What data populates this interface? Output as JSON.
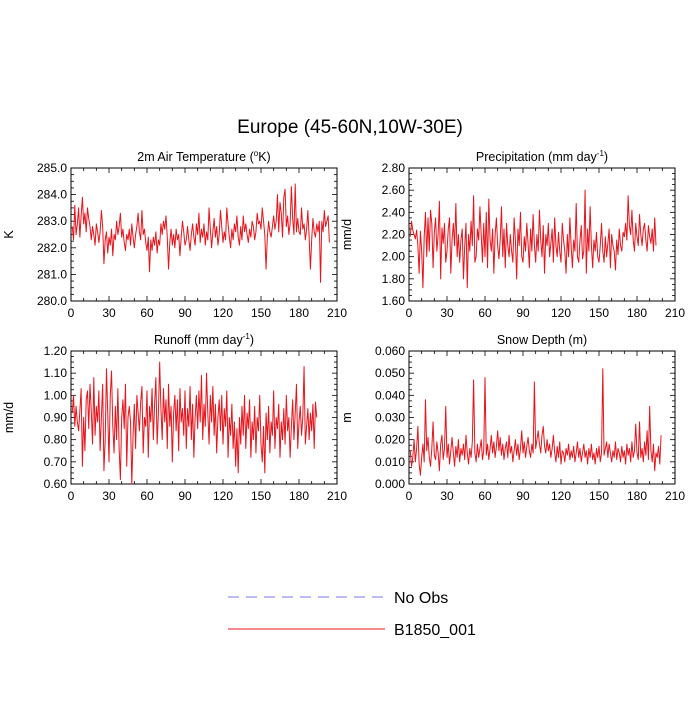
{
  "figure": {
    "title": "Europe (45-60N,10W-30E)"
  },
  "legend": {
    "entries": [
      {
        "label": "No Obs",
        "color": "#7777ee",
        "style": "dashed"
      },
      {
        "label": "B1850_001",
        "color": "#e8141c",
        "style": "solid"
      }
    ]
  },
  "chart_data": [
    {
      "type": "line",
      "id": "temp",
      "title_prefix": "2m Air Temperature (",
      "title_sup": "o",
      "title_suffix": "K)",
      "ylabel": "K",
      "xlim": [
        0,
        210
      ],
      "ylim": [
        280.0,
        285.0
      ],
      "xticks": [
        "0",
        "30",
        "60",
        "90",
        "120",
        "150",
        "180",
        "210"
      ],
      "yticks": [
        "280.0",
        "281.0",
        "282.0",
        "283.0",
        "284.0",
        "285.0"
      ],
      "series": [
        {
          "name": "B1850_001",
          "color": "#e8141c",
          "x_start": 1,
          "x_step": 1,
          "values": [
            282.8,
            282.3,
            283.6,
            282.5,
            282.9,
            283.5,
            282.4,
            283.2,
            283.9,
            282.9,
            283.3,
            282.6,
            283.5,
            283.1,
            282.8,
            282.3,
            282.8,
            282.5,
            282.1,
            282.9,
            282.6,
            282.2,
            282.6,
            283.4,
            282.8,
            281.4,
            282.3,
            282.6,
            281.8,
            282.4,
            282.1,
            282.7,
            281.7,
            282.5,
            282.3,
            283.0,
            282.5,
            282.8,
            283.3,
            282.4,
            282.7,
            282.2,
            281.9,
            282.5,
            282.3,
            282.7,
            282.1,
            282.9,
            282.4,
            282.0,
            282.5,
            282.8,
            283.3,
            282.6,
            282.3,
            283.4,
            282.5,
            282.7,
            282.2,
            281.9,
            282.4,
            281.1,
            282.3,
            281.9,
            282.4,
            282.1,
            282.6,
            281.8,
            282.3,
            282.1,
            282.9,
            282.5,
            283.0,
            282.7,
            283.2,
            282.4,
            281.2,
            282.2,
            282.7,
            282.1,
            282.5,
            282.0,
            282.7,
            282.3,
            282.5,
            281.7,
            282.4,
            283.0,
            282.6,
            282.1,
            282.3,
            282.8,
            282.3,
            281.9,
            282.5,
            282.9,
            282.4,
            282.1,
            282.9,
            282.5,
            283.3,
            282.2,
            282.7,
            282.4,
            282.9,
            282.1,
            282.6,
            282.3,
            283.5,
            282.7,
            282.0,
            282.6,
            283.1,
            282.4,
            282.8,
            282.1,
            282.5,
            283.4,
            282.8,
            282.2,
            282.6,
            282.3,
            283.5,
            282.9,
            282.4,
            282.0,
            282.7,
            282.3,
            282.9,
            282.6,
            283.2,
            282.4,
            282.1,
            282.8,
            282.3,
            283.2,
            282.6,
            282.9,
            282.5,
            282.2,
            282.7,
            282.4,
            283.0,
            282.8,
            282.3,
            282.6,
            283.3,
            282.9,
            283.0,
            282.7,
            283.5,
            283.0,
            282.5,
            281.2,
            282.4,
            283.0,
            282.6,
            282.4,
            282.8,
            283.2,
            282.7,
            283.0,
            284.0,
            282.6,
            283.7,
            283.3,
            282.4,
            283.9,
            284.2,
            282.8,
            283.2,
            282.5,
            282.9,
            284.3,
            283.1,
            282.5,
            284.4,
            282.6,
            283.1,
            282.6,
            282.5,
            283.5,
            282.7,
            282.9,
            282.3,
            282.7,
            283.4,
            282.4,
            281.2,
            282.3,
            283.1,
            282.6,
            282.4,
            282.9,
            282.6,
            283.0,
            280.7,
            283.0,
            282.6,
            283.4,
            282.8,
            283.0,
            283.2,
            282.2
          ]
        }
      ]
    },
    {
      "type": "line",
      "id": "precip",
      "title_prefix": "Precipitation (mm day",
      "title_sup": "-1",
      "title_suffix": ")",
      "ylabel": "mm/d",
      "xlim": [
        0,
        210
      ],
      "ylim": [
        1.6,
        2.8
      ],
      "xticks": [
        "0",
        "30",
        "60",
        "90",
        "120",
        "150",
        "180",
        "210"
      ],
      "yticks": [
        "1.60",
        "1.80",
        "2.00",
        "2.20",
        "2.40",
        "2.60",
        "2.80"
      ],
      "series": [
        {
          "name": "B1850_001",
          "color": "#e8141c",
          "x_start": 1,
          "x_step": 1,
          "values": [
            2.18,
            2.32,
            2.24,
            2.2,
            2.16,
            2.24,
            2.1,
            1.85,
            2.23,
            2.05,
            1.72,
            2.18,
            2.4,
            2.0,
            2.35,
            2.05,
            2.42,
            2.3,
            1.9,
            2.22,
            2.35,
            2.05,
            2.2,
            2.5,
            1.8,
            2.26,
            2.12,
            2.3,
            1.95,
            2.05,
            2.25,
            2.35,
            1.85,
            2.15,
            2.3,
            2.1,
            2.48,
            2.0,
            2.2,
            1.95,
            2.15,
            2.25,
            1.8,
            2.1,
            2.3,
            1.72,
            2.2,
            2.05,
            2.32,
            2.1,
            2.55,
            1.95,
            2.0,
            2.25,
            2.15,
            2.45,
            2.2,
            1.95,
            2.3,
            2.0,
            2.4,
            1.9,
            2.52,
            2.15,
            2.05,
            2.25,
            1.85,
            2.2,
            2.35,
            2.1,
            1.98,
            2.15,
            2.45,
            2.0,
            2.25,
            1.9,
            2.3,
            2.1,
            2.0,
            2.2,
            2.05,
            1.95,
            2.35,
            2.15,
            1.8,
            2.25,
            2.1,
            2.4,
            2.0,
            1.95,
            2.18,
            2.05,
            2.3,
            2.12,
            1.9,
            2.25,
            2.05,
            2.38,
            2.1,
            1.95,
            2.2,
            2.05,
            2.42,
            2.15,
            2.0,
            2.28,
            1.85,
            2.2,
            2.1,
            2.3,
            2.0,
            2.12,
            2.25,
            1.95,
            2.35,
            2.1,
            2.0,
            2.22,
            2.05,
            1.95,
            2.3,
            2.15,
            2.05,
            1.85,
            2.2,
            2.0,
            2.35,
            2.1,
            1.9,
            2.15,
            2.05,
            2.48,
            2.0,
            1.95,
            2.15,
            2.28,
            1.98,
            2.05,
            2.6,
            1.85,
            2.25,
            2.05,
            2.45,
            2.1,
            1.9,
            2.15,
            2.05,
            2.22,
            2.0,
            1.95,
            2.1,
            2.3,
            2.05,
            1.95,
            2.18,
            2.0,
            2.12,
            2.25,
            1.9,
            2.2,
            2.1,
            2.05,
            1.88,
            2.15,
            2.02,
            2.25,
            2.1,
            2.05,
            2.22,
            2.18,
            2.3,
            2.15,
            2.55,
            2.28,
            2.2,
            2.42,
            2.15,
            2.05,
            2.3,
            2.18,
            2.1,
            2.38,
            2.2,
            2.1,
            2.25,
            2.3,
            2.15,
            2.05,
            2.28,
            2.18,
            2.12,
            2.25,
            2.05,
            2.35,
            2.1
          ]
        }
      ]
    },
    {
      "type": "line",
      "id": "runoff",
      "title_prefix": "Runoff (mm day",
      "title_sup": "-1",
      "title_suffix": ")",
      "ylabel": "mm/d",
      "xlim": [
        0,
        210
      ],
      "ylim": [
        0.6,
        1.2
      ],
      "xticks": [
        "0",
        "30",
        "60",
        "90",
        "120",
        "150",
        "180",
        "210"
      ],
      "yticks": [
        "0.60",
        "0.70",
        "0.80",
        "0.90",
        "1.00",
        "1.10",
        "1.20"
      ],
      "series": [
        {
          "name": "B1850_001",
          "color": "#e8141c",
          "x_start": 1,
          "x_step": 1,
          "values": [
            0.92,
            1.0,
            0.86,
            0.95,
            0.88,
            0.84,
            0.93,
            1.03,
            0.68,
            0.9,
            0.75,
            0.98,
            1.02,
            0.85,
            1.05,
            0.93,
            0.78,
            1.08,
            0.82,
            0.95,
            0.88,
            1.02,
            0.75,
            0.9,
            1.05,
            0.66,
            0.8,
            1.12,
            0.92,
            0.7,
            1.0,
            1.11,
            0.86,
            0.74,
            0.95,
            0.8,
            1.03,
            0.76,
            0.62,
            0.9,
            0.98,
            0.85,
            1.05,
            0.68,
            0.9,
            0.95,
            0.88,
            0.6,
            0.82,
            0.96,
            0.76,
            1.0,
            0.92,
            0.84,
            0.97,
            1.04,
            0.74,
            0.9,
            0.86,
            1.02,
            0.72,
            0.95,
            0.88,
            1.03,
            0.8,
            0.96,
            1.08,
            0.78,
            0.92,
            1.15,
            0.94,
            0.8,
            1.03,
            0.88,
            0.98,
            0.76,
            1.05,
            0.86,
            0.95,
            0.7,
            0.92,
            1.0,
            0.84,
            0.98,
            0.75,
            1.03,
            0.88,
            0.94,
            0.82,
            1.02,
            0.76,
            0.94,
            0.86,
            1.04,
            0.8,
            0.96,
            0.72,
            0.9,
            1.0,
            0.85,
            1.02,
            0.88,
            1.09,
            0.8,
            0.96,
            0.86,
            1.1,
            0.92,
            0.78,
            1.0,
            0.88,
            1.04,
            0.82,
            0.96,
            0.74,
            0.9,
            0.98,
            0.84,
            1.0,
            0.78,
            0.94,
            0.86,
            1.02,
            0.72,
            0.9,
            0.82,
            0.96,
            0.76,
            0.88,
            0.68,
            0.85,
            0.65,
            0.9,
            0.78,
            0.95,
            0.82,
            1.0,
            0.76,
            0.92,
            0.85,
            0.98,
            0.72,
            0.88,
            0.8,
            0.95,
            0.74,
            0.9,
            0.84,
            1.0,
            0.78,
            0.7,
            0.86,
            0.65,
            0.92,
            0.8,
            0.95,
            0.74,
            0.88,
            0.82,
            1.02,
            0.76,
            0.9,
            0.85,
            0.96,
            0.72,
            0.88,
            0.8,
            0.94,
            0.78,
            1.0,
            0.84,
            0.9,
            0.72,
            0.86,
            0.98,
            0.8,
            0.92,
            1.05,
            0.76,
            0.88,
            0.95,
            0.82,
            0.9,
            1.13,
            0.78,
            0.86,
            0.94,
            0.8,
            0.92,
            0.84,
            0.96,
            0.76,
            0.97,
            0.9
          ]
        }
      ]
    },
    {
      "type": "line",
      "id": "snow",
      "title_prefix": "Snow Depth (m)",
      "title_sup": "",
      "title_suffix": "",
      "ylabel": "m",
      "xlim": [
        0,
        210
      ],
      "ylim": [
        0.0,
        0.06
      ],
      "xticks": [
        "0",
        "30",
        "60",
        "90",
        "120",
        "150",
        "180",
        "210"
      ],
      "yticks": [
        "0.000",
        "0.010",
        "0.020",
        "0.030",
        "0.040",
        "0.050",
        "0.060"
      ],
      "series": [
        {
          "name": "B1850_001",
          "color": "#e8141c",
          "x_start": 1,
          "x_step": 1,
          "values": [
            0.015,
            0.008,
            0.012,
            0.02,
            0.01,
            0.016,
            0.026,
            0.009,
            0.004,
            0.012,
            0.018,
            0.01,
            0.038,
            0.015,
            0.021,
            0.012,
            0.008,
            0.016,
            0.028,
            0.013,
            0.011,
            0.019,
            0.014,
            0.006,
            0.018,
            0.022,
            0.011,
            0.016,
            0.035,
            0.012,
            0.018,
            0.009,
            0.015,
            0.021,
            0.014,
            0.008,
            0.017,
            0.012,
            0.02,
            0.01,
            0.016,
            0.013,
            0.018,
            0.011,
            0.022,
            0.014,
            0.009,
            0.016,
            0.012,
            0.019,
            0.047,
            0.014,
            0.01,
            0.018,
            0.012,
            0.016,
            0.02,
            0.011,
            0.015,
            0.048,
            0.013,
            0.018,
            0.011,
            0.016,
            0.022,
            0.014,
            0.019,
            0.012,
            0.017,
            0.024,
            0.015,
            0.021,
            0.013,
            0.018,
            0.011,
            0.016,
            0.019,
            0.012,
            0.022,
            0.014,
            0.017,
            0.01,
            0.015,
            0.02,
            0.013,
            0.018,
            0.011,
            0.016,
            0.024,
            0.014,
            0.019,
            0.012,
            0.017,
            0.021,
            0.015,
            0.012,
            0.018,
            0.014,
            0.046,
            0.016,
            0.02,
            0.024,
            0.018,
            0.014,
            0.022,
            0.026,
            0.017,
            0.014,
            0.02,
            0.015,
            0.018,
            0.012,
            0.016,
            0.022,
            0.014,
            0.01,
            0.017,
            0.012,
            0.019,
            0.009,
            0.015,
            0.014,
            0.01,
            0.016,
            0.013,
            0.018,
            0.011,
            0.015,
            0.012,
            0.017,
            0.01,
            0.014,
            0.019,
            0.012,
            0.016,
            0.01,
            0.014,
            0.018,
            0.012,
            0.015,
            0.009,
            0.016,
            0.012,
            0.018,
            0.011,
            0.014,
            0.009,
            0.016,
            0.012,
            0.017,
            0.01,
            0.014,
            0.052,
            0.013,
            0.016,
            0.019,
            0.012,
            0.018,
            0.014,
            0.01,
            0.015,
            0.012,
            0.019,
            0.011,
            0.016,
            0.014,
            0.01,
            0.017,
            0.012,
            0.015,
            0.009,
            0.018,
            0.013,
            0.016,
            0.01,
            0.019,
            0.012,
            0.015,
            0.027,
            0.014,
            0.011,
            0.028,
            0.012,
            0.016,
            0.01,
            0.019,
            0.013,
            0.024,
            0.011,
            0.035,
            0.015,
            0.01,
            0.018,
            0.006,
            0.014,
            0.012,
            0.017,
            0.009,
            0.022
          ]
        }
      ]
    }
  ]
}
